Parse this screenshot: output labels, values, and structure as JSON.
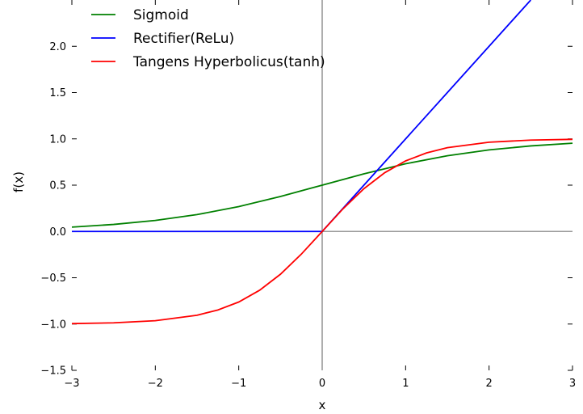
{
  "chart_data": {
    "type": "line",
    "title": "",
    "xlabel": "x",
    "ylabel": "f(x)",
    "xlim": [
      -3,
      3
    ],
    "ylim": [
      -1.5,
      2.5
    ],
    "x_ticks": [
      -3,
      -2,
      -1,
      0,
      1,
      2,
      3
    ],
    "x_tick_labels": [
      "−3",
      "−2",
      "−1",
      "0",
      "1",
      "2",
      "3"
    ],
    "y_ticks": [
      -1.5,
      -1.0,
      -0.5,
      0.0,
      0.5,
      1.0,
      1.5,
      2.0
    ],
    "y_tick_labels": [
      "−1.5",
      "−1.0",
      "−0.5",
      "0.0",
      "0.5",
      "1.0",
      "1.5",
      "2.0"
    ],
    "grid": false,
    "zero_lines": true,
    "legend_position": "top-left",
    "series": [
      {
        "name": "Sigmoid",
        "color": "#008000",
        "x": [
          -3,
          -2.5,
          -2,
          -1.5,
          -1,
          -0.5,
          0,
          0.5,
          1,
          1.5,
          2,
          2.5,
          3
        ],
        "y": [
          0.047,
          0.076,
          0.119,
          0.182,
          0.269,
          0.378,
          0.5,
          0.622,
          0.731,
          0.818,
          0.881,
          0.924,
          0.953
        ]
      },
      {
        "name": "Rectifier(ReLu)",
        "color": "#0000ff",
        "x": [
          -3,
          0,
          0.5,
          1,
          1.5,
          2,
          2.5
        ],
        "y": [
          0,
          0,
          0.5,
          1,
          1.5,
          2,
          2.5
        ]
      },
      {
        "name": "Tangens Hyperbolicus(tanh)",
        "color": "#ff0000",
        "x": [
          -3,
          -2.5,
          -2,
          -1.5,
          -1.25,
          -1,
          -0.75,
          -0.5,
          -0.25,
          0,
          0.25,
          0.5,
          0.75,
          1,
          1.25,
          1.5,
          2,
          2.5,
          3
        ],
        "y": [
          -0.995,
          -0.987,
          -0.964,
          -0.905,
          -0.848,
          -0.762,
          -0.635,
          -0.462,
          -0.245,
          0,
          0.245,
          0.462,
          0.635,
          0.762,
          0.848,
          0.905,
          0.964,
          0.987,
          0.995
        ]
      }
    ]
  }
}
